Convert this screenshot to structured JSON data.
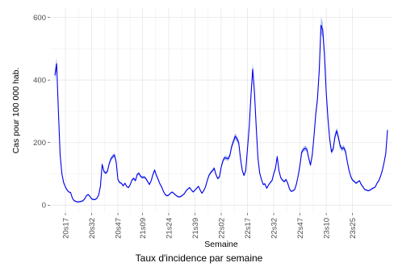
{
  "caption": "Taux d'incidence par semaine",
  "chart_data": {
    "type": "line",
    "title": "",
    "xlabel": "Semaine",
    "ylabel": "Cas pour 100 000 hab.",
    "ylim": [
      -25,
      630
    ],
    "yticks": [
      0,
      200,
      400,
      600
    ],
    "xticks": [
      "20s17",
      "20s32",
      "20s47",
      "21s09",
      "21s24",
      "21s39",
      "22s02",
      "22s17",
      "22s32",
      "22s47",
      "23s10",
      "23s25"
    ],
    "grid": true,
    "x_start_week": "20s11",
    "series": [
      {
        "color": "#0000ee",
        "band_color": "#9db4ec",
        "values": [
          415,
          452,
          300,
          160,
          100,
          72,
          58,
          48,
          42,
          40,
          22,
          14,
          12,
          10,
          11,
          12,
          14,
          20,
          30,
          34,
          28,
          20,
          18,
          18,
          22,
          32,
          60,
          130,
          108,
          102,
          108,
          132,
          148,
          155,
          160,
          138,
          82,
          72,
          70,
          62,
          70,
          60,
          56,
          65,
          80,
          86,
          78,
          98,
          102,
          92,
          88,
          90,
          85,
          75,
          66,
          78,
          98,
          112,
          95,
          82,
          68,
          58,
          44,
          34,
          30,
          32,
          38,
          42,
          37,
          32,
          28,
          26,
          28,
          32,
          37,
          46,
          52,
          56,
          48,
          42,
          48,
          54,
          60,
          48,
          38,
          46,
          58,
          78,
          95,
          104,
          110,
          118,
          98,
          85,
          90,
          122,
          142,
          152,
          150,
          148,
          160,
          188,
          204,
          220,
          212,
          200,
          150,
          112,
          95,
          110,
          180,
          250,
          350,
          435,
          360,
          250,
          150,
          102,
          82,
          66,
          68,
          54,
          64,
          72,
          78,
          100,
          118,
          155,
          110,
          88,
          80,
          75,
          82,
          70,
          52,
          44,
          46,
          50,
          68,
          95,
          128,
          170,
          178,
          182,
          178,
          150,
          128,
          160,
          220,
          290,
          340,
          430,
          575,
          560,
          480,
          360,
          275,
          210,
          170,
          180,
          220,
          238,
          215,
          188,
          180,
          184,
          172,
          140,
          112,
          92,
          80,
          76,
          70,
          74,
          78,
          66,
          58,
          50,
          48,
          46,
          48,
          52,
          55,
          58,
          70,
          78,
          92,
          110,
          135,
          165,
          240
        ]
      }
    ]
  }
}
